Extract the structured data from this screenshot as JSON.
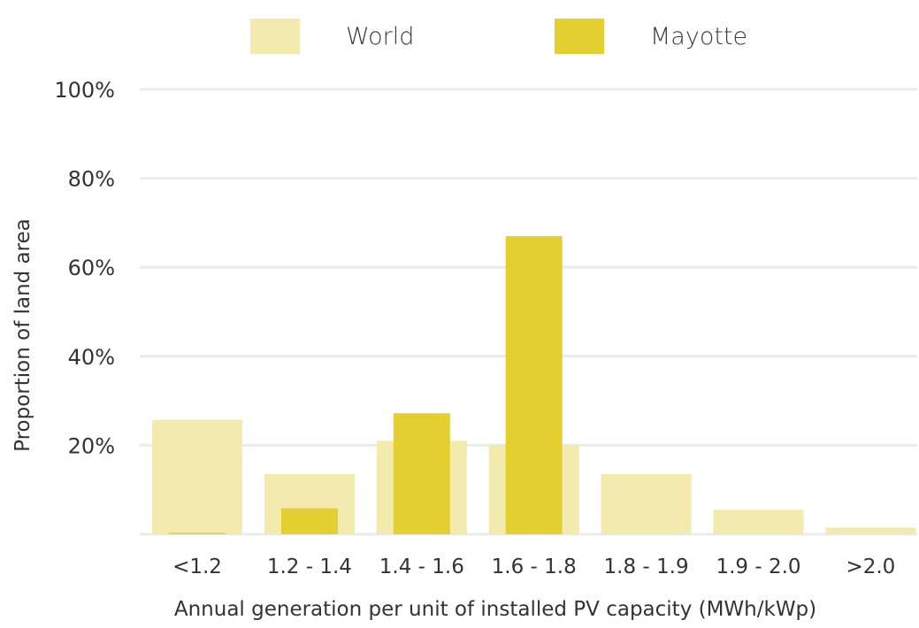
{
  "chart_data": {
    "type": "bar",
    "title": "",
    "xlabel": "Annual generation per unit of installed PV capacity (MWh/kWp)",
    "ylabel": "Proportion of land area",
    "ylim": [
      0,
      100
    ],
    "yticks": [
      20,
      40,
      60,
      80,
      100
    ],
    "ytick_labels": [
      "20%",
      "40%",
      "60%",
      "80%",
      "100%"
    ],
    "grid": true,
    "legend_position": "top",
    "categories": [
      "<1.2",
      "1.2 - 1.4",
      "1.4 - 1.6",
      "1.6 - 1.8",
      "1.8 - 1.9",
      "1.9 - 2.0",
      ">2.0"
    ],
    "series": [
      {
        "name": "World",
        "color": "#f3eaad",
        "values": [
          25.7,
          13.5,
          21.0,
          20.0,
          13.5,
          5.5,
          1.5
        ]
      },
      {
        "name": "Mayotte",
        "color": "#e3cf30",
        "values": [
          0.3,
          5.8,
          27.2,
          67.0,
          0,
          0,
          0
        ]
      }
    ],
    "gridline_color": "#ebebeb"
  }
}
